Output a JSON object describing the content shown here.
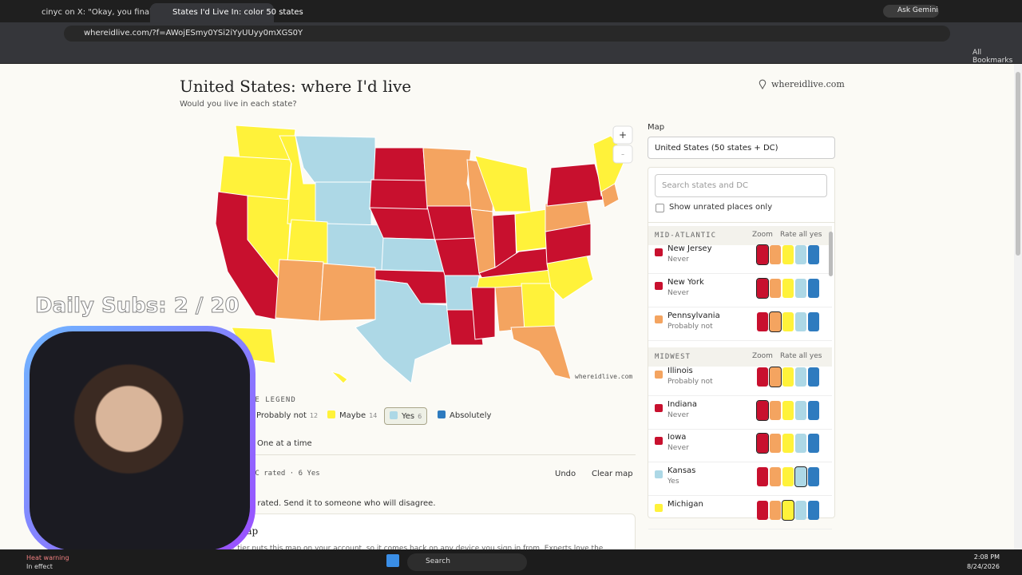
{
  "browser": {
    "tabs": [
      "cinyc on X: \"Okay, you finally go",
      "States I'd Live In: color 50 states"
    ],
    "ask_gemini": "Ask Gemini",
    "url": "whereidlive.com/?f=AWojESmy0YSi2iYyUUyy0mXGS0Y",
    "bookmarks": "All Bookmarks"
  },
  "header": {
    "title": "United States: where I'd live",
    "subtitle": "Would you live in each state?",
    "site": "whereidlive.com"
  },
  "map": {
    "zoom_in": "+",
    "zoom_out": "-",
    "watermark": "whereidlive.com"
  },
  "legend": {
    "heading": "CE LEGEND",
    "items": [
      {
        "label": "Probably not",
        "count": 12
      },
      {
        "label": "Maybe",
        "count": 14
      },
      {
        "label": "Yes",
        "count": 6
      },
      {
        "label": "Absolutely"
      }
    ]
  },
  "controls": {
    "mode": "One at a time",
    "status": "DC rated · 6 Yes",
    "undo": "Undo",
    "clear": "Clear map"
  },
  "share_text": "e rated. Send it to someone who will disagree.",
  "card": {
    "title": "map",
    "body": "pporter tier puts this map on your account, so it comes back on any device you sign in from. Experts love the"
  },
  "panel": {
    "label": "Map",
    "select": "United States (50 states + DC)",
    "search_placeholder": "Search states and DC",
    "checkbox": "Show unrated places only",
    "zoom": "Zoom",
    "rate_all": "Rate all yes",
    "groups": [
      {
        "name": "MID-ATLANTIC",
        "rows": [
          {
            "name": "New Jersey",
            "status": "Never"
          },
          {
            "name": "New York",
            "status": "Never"
          },
          {
            "name": "Pennsylvania",
            "status": "Probably not"
          }
        ]
      },
      {
        "name": "MIDWEST",
        "rows": [
          {
            "name": "Illinois",
            "status": "Probably not"
          },
          {
            "name": "Indiana",
            "status": "Never"
          },
          {
            "name": "Iowa",
            "status": "Never"
          },
          {
            "name": "Kansas",
            "status": "Yes"
          },
          {
            "name": "Michigan"
          }
        ]
      }
    ]
  },
  "overlay": {
    "subs": "Daily Subs: 2 / 20"
  },
  "taskbar": {
    "alert_title": "Heat warning",
    "alert_sub": "In effect",
    "search": "Search",
    "time": "2:08 PM",
    "date": "8/24/2026"
  }
}
